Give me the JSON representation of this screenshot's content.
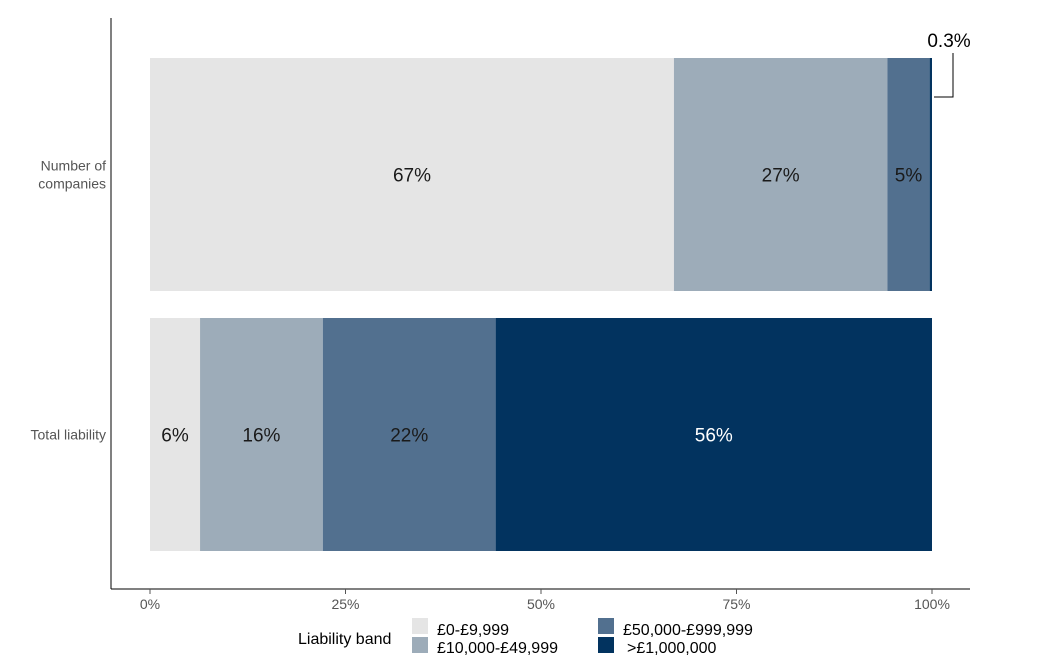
{
  "chart_data": {
    "type": "bar",
    "orientation": "horizontal",
    "stacked": true,
    "percent_axis": true,
    "categories": [
      "Number of companies",
      "Total liability"
    ],
    "series": [
      {
        "name": "£0-£9,999",
        "values": [
          67.0,
          6.4
        ],
        "labels": [
          "67%",
          "6%"
        ],
        "color": "#e5e5e5",
        "label_color": "#1a1a1a"
      },
      {
        "name": "£10,000-£49,999",
        "values": [
          27.3,
          15.7
        ],
        "labels": [
          "27%",
          "16%"
        ],
        "color": "#9dacb9",
        "label_color": "#1a1a1a"
      },
      {
        "name": "£50,000-£999,999",
        "values": [
          5.4,
          22.1
        ],
        "labels": [
          "5%",
          "22%"
        ],
        "color": "#52708f",
        "label_color": "#1a1a1a"
      },
      {
        "name": ">£1,000,000",
        "values": [
          0.3,
          55.8
        ],
        "labels": [
          "",
          "56%"
        ],
        "color": "#02335f",
        "label_color": "#ffffff"
      }
    ],
    "callouts": [
      {
        "category": "Number of companies",
        "series": ">£1,000,000",
        "text": "0.3%"
      }
    ],
    "xlim": [
      0,
      100
    ],
    "xticks": [
      0,
      25,
      50,
      75,
      100
    ],
    "xtick_labels": [
      "0%",
      "25%",
      "50%",
      "75%",
      "100%"
    ],
    "xlabel": "",
    "ylabel": "",
    "title": "",
    "grid": false,
    "legend": {
      "title": "Liability band",
      "position": "bottom",
      "items": [
        "£0-£9,999",
        "£10,000-£49,999",
        "£50,000-£999,999",
        ">£1,000,000"
      ]
    }
  }
}
